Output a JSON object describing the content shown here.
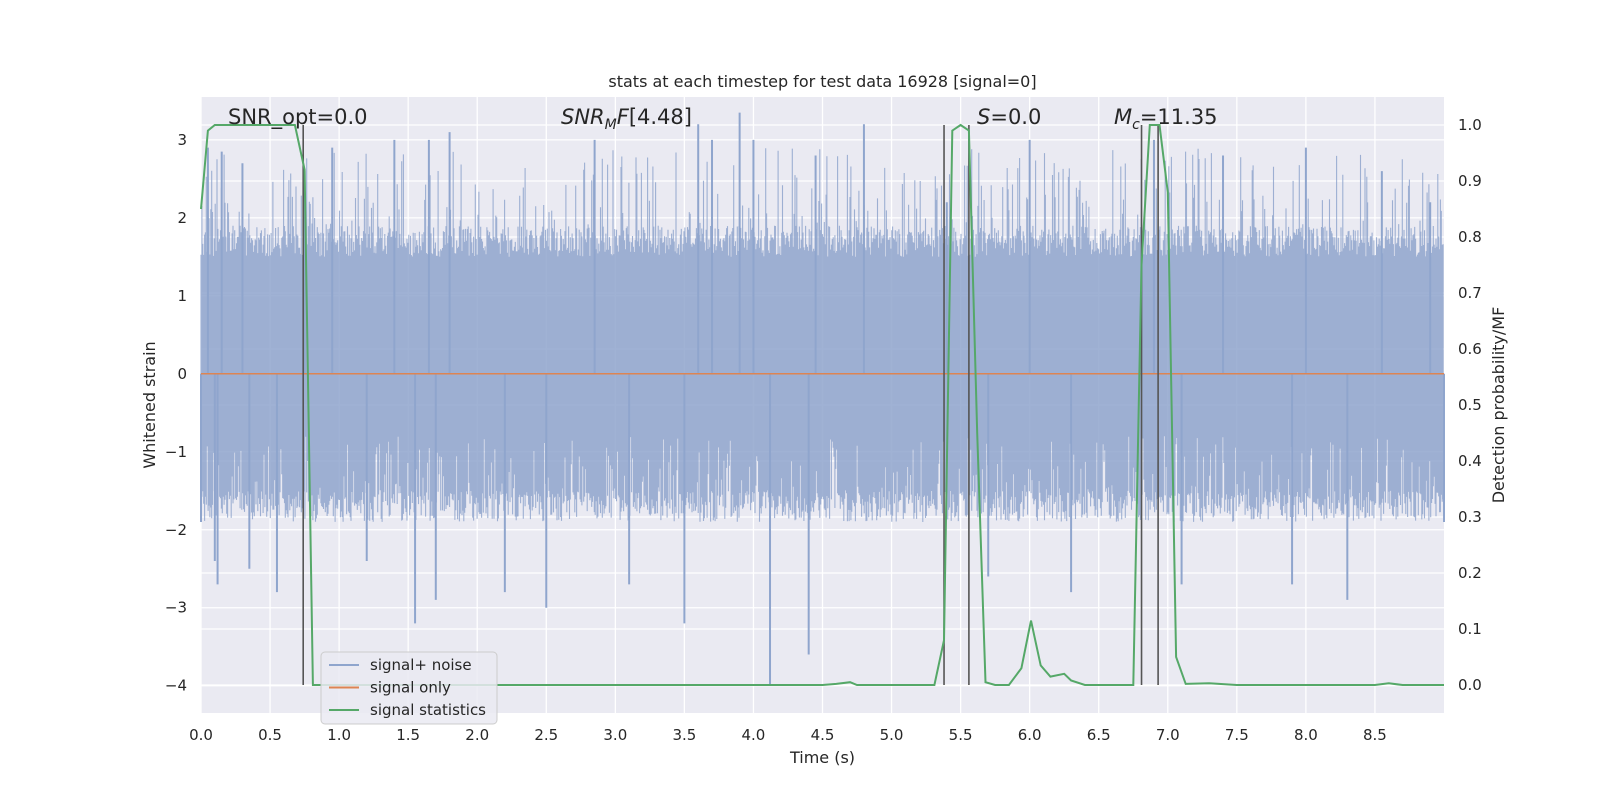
{
  "chart_data": {
    "type": "line",
    "title": "stats at each timestep for test data 16928 [signal=0]",
    "xlabel": "Time (s)",
    "ylabel": "Whitened strain",
    "y2label": "Detection probability/MF",
    "xlim": [
      0,
      9.0
    ],
    "ylim": [
      -4.35,
      3.55
    ],
    "y2lim": [
      -0.05,
      1.05
    ],
    "xticks": [
      "0.0",
      "0.5",
      "1.0",
      "1.5",
      "2.0",
      "2.5",
      "3.0",
      "3.5",
      "4.0",
      "4.5",
      "5.0",
      "5.5",
      "6.0",
      "6.5",
      "7.0",
      "7.5",
      "8.0",
      "8.5"
    ],
    "yticks": [
      "3",
      "2",
      "1",
      "0",
      "−1",
      "−2",
      "−3",
      "−4"
    ],
    "y2ticks": [
      "1.0",
      "0.9",
      "0.8",
      "0.7",
      "0.6",
      "0.5",
      "0.4",
      "0.3",
      "0.2",
      "0.1",
      "0.0"
    ],
    "grid": true,
    "legend_position": "lower-left",
    "annotations": {
      "snr_opt": "SNR_opt=0.0",
      "snr_mf": "[4.48]",
      "s": "=0.0",
      "mc": "=11.35"
    },
    "vlines_x": [
      0.74,
      5.38,
      5.56,
      6.81,
      6.93
    ],
    "series": [
      {
        "name": "signal+ noise",
        "color": "#8fa5cd",
        "description_axis": "left",
        "x": [
          0.0,
          0.05,
          0.1,
          0.12,
          0.15,
          0.3,
          0.35,
          0.55,
          0.75,
          0.95,
          1.2,
          1.4,
          1.55,
          1.65,
          1.7,
          1.8,
          2.2,
          2.5,
          2.85,
          3.1,
          3.5,
          3.6,
          3.7,
          3.9,
          4.0,
          4.12,
          4.4,
          4.45,
          4.8,
          5.4,
          5.7,
          6.0,
          6.3,
          6.9,
          7.1,
          7.4,
          7.9,
          8.0,
          8.3,
          8.55,
          8.9,
          9.0
        ],
        "y": [
          -1.9,
          2.9,
          -2.4,
          -2.7,
          2.85,
          2.7,
          -2.5,
          -2.8,
          2.6,
          2.9,
          -2.4,
          3.0,
          -3.2,
          3.0,
          -2.9,
          3.1,
          -2.8,
          -3.0,
          3.0,
          -2.7,
          -3.2,
          3.2,
          3.0,
          3.35,
          3.0,
          -4.0,
          -3.6,
          2.8,
          3.2,
          2.2,
          -2.6,
          3.0,
          -2.8,
          3.0,
          -2.7,
          2.8,
          -2.7,
          2.9,
          -2.9,
          2.6,
          2.2,
          -1.9
        ]
      },
      {
        "name": "signal only",
        "color": "#dd8452",
        "description_axis": "left",
        "x": [
          0,
          9.0
        ],
        "y": [
          0,
          0
        ]
      },
      {
        "name": "signal statistics",
        "color": "#55a868",
        "description_axis": "right",
        "x": [
          0.0,
          0.05,
          0.1,
          0.15,
          0.3,
          0.45,
          0.6,
          0.68,
          0.75,
          0.81,
          1.0,
          2.0,
          3.0,
          4.0,
          4.5,
          4.6,
          4.7,
          4.75,
          4.8,
          5.0,
          5.2,
          5.31,
          5.38,
          5.44,
          5.5,
          5.56,
          5.62,
          5.68,
          5.75,
          5.85,
          5.94,
          6.01,
          6.08,
          6.15,
          6.25,
          6.3,
          6.4,
          6.5,
          6.75,
          6.81,
          6.87,
          6.94,
          7.0,
          7.06,
          7.13,
          7.3,
          7.5,
          8.0,
          8.5,
          8.6,
          8.7,
          9.0
        ],
        "y": [
          0.85,
          0.99,
          1.0,
          1.0,
          1.0,
          1.0,
          1.0,
          1.0,
          0.92,
          0.0,
          0.0,
          0.0,
          0.0,
          0.0,
          0.0,
          0.002,
          0.005,
          0.0,
          0.0,
          0.0,
          0.0,
          0.0,
          0.08,
          0.99,
          1.0,
          0.99,
          0.45,
          0.005,
          0.0,
          0.0,
          0.03,
          0.115,
          0.035,
          0.015,
          0.02,
          0.008,
          0.0,
          0.0,
          0.0,
          0.75,
          1.0,
          1.0,
          0.88,
          0.05,
          0.002,
          0.003,
          0.0,
          0.0,
          0.0,
          0.003,
          0.0,
          0.0
        ]
      }
    ],
    "noise_band": {
      "color": "#8fa5cd",
      "core_range": [
        -1.7,
        1.7
      ],
      "spike_range": [
        -2.6,
        2.9
      ]
    }
  }
}
